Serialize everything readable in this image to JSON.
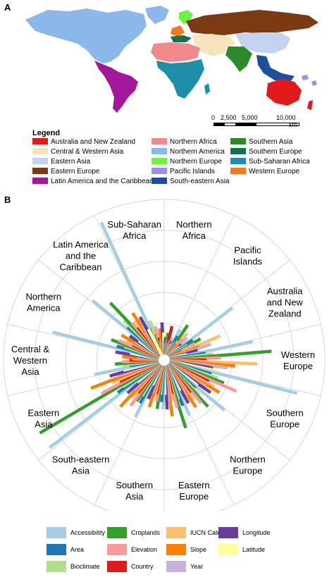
{
  "panel_a_label": "A",
  "panel_b_label": "B",
  "map": {
    "scale_labels": [
      "0",
      "2,500",
      "5,000",
      "10,000"
    ],
    "scale_unit": "km",
    "legend_title": "Legend",
    "legend": [
      {
        "label": "Australia and New Zealand",
        "color": "#e31a1c"
      },
      {
        "label": "Central & Western Asia",
        "color": "#f7e3bd"
      },
      {
        "label": "Eastern Asia",
        "color": "#c6d3f0"
      },
      {
        "label": "Eastern Europe",
        "color": "#7b3a12"
      },
      {
        "label": "Latin America and the Caribbean",
        "color": "#a3189a"
      },
      {
        "label": "Northern Africa",
        "color": "#f08a8a"
      },
      {
        "label": "Northern America",
        "color": "#8ab8ea"
      },
      {
        "label": "Northern Europe",
        "color": "#6ff23e"
      },
      {
        "label": "Pacific Islands",
        "color": "#9a8fe0"
      },
      {
        "label": "South-eastern Asia",
        "color": "#1d4f9e"
      },
      {
        "label": "Southern Asia",
        "color": "#2c8a2c"
      },
      {
        "label": "Southern Europe",
        "color": "#167049"
      },
      {
        "label": "Sub-Saharan Africa",
        "color": "#1f8ea8"
      },
      {
        "label": "Western Europe",
        "color": "#f2791c"
      }
    ]
  },
  "chart_data": {
    "type": "bar",
    "regions": [
      {
        "name": [
          "Sub-Saharan",
          "Africa"
        ]
      },
      {
        "name": [
          "Northern",
          "Africa"
        ]
      },
      {
        "name": [
          "Pacific",
          "Islands"
        ]
      },
      {
        "name": [
          "Australia",
          "and New",
          "Zealand"
        ]
      },
      {
        "name": [
          "Western",
          "Europe"
        ]
      },
      {
        "name": [
          "Southern",
          "Europe"
        ]
      },
      {
        "name": [
          "Northern",
          "Europe"
        ]
      },
      {
        "name": [
          "Eastern",
          "Europe"
        ]
      },
      {
        "name": [
          "Southern",
          "Asia"
        ]
      },
      {
        "name": [
          "South-eastern",
          "Asia"
        ]
      },
      {
        "name": [
          "Eastern",
          "Asia"
        ]
      },
      {
        "name": [
          "Central &",
          "Western",
          "Asia"
        ]
      },
      {
        "name": [
          "Northern",
          "America"
        ]
      },
      {
        "name": [
          "Latin America",
          "and the",
          "Caribbean"
        ]
      }
    ],
    "variables": [
      {
        "name": "Accessibility",
        "color": "#a6cee3"
      },
      {
        "name": "Area",
        "color": "#1f78b4"
      },
      {
        "name": "Bioclimate",
        "color": "#b2df8a"
      },
      {
        "name": "Croplands",
        "color": "#33a02c"
      },
      {
        "name": "Elevation",
        "color": "#fb9a99"
      },
      {
        "name": "Country",
        "color": "#e31a1c"
      },
      {
        "name": "IUCN Category",
        "color": "#fdbf6f"
      },
      {
        "name": "Slope",
        "color": "#ff7f00"
      },
      {
        "name": "Year",
        "color": "#cab2d6"
      },
      {
        "name": "Longitude",
        "color": "#6a3d9a"
      },
      {
        "name": "Latitude",
        "color": "#ffff99"
      }
    ],
    "values": [
      [
        1.0,
        0.2,
        0.25,
        0.15,
        0.2,
        0.12,
        0.1,
        0.18,
        0.1,
        0.22,
        0.15
      ],
      [
        0.1,
        0.12,
        0.08,
        0.15,
        0.1,
        0.2,
        0.08,
        0.1,
        0.12,
        0.1,
        0.08
      ],
      [
        0.2,
        0.15,
        0.1,
        0.25,
        0.12,
        0.1,
        0.2,
        0.15,
        0.18,
        0.12,
        0.1
      ],
      [
        0.55,
        0.2,
        0.15,
        0.25,
        0.2,
        0.1,
        0.38,
        0.22,
        0.3,
        0.2,
        0.12
      ],
      [
        0.58,
        0.25,
        0.3,
        0.7,
        0.35,
        0.25,
        0.6,
        0.45,
        0.4,
        0.3,
        0.35
      ],
      [
        0.9,
        0.3,
        0.35,
        0.4,
        0.5,
        0.3,
        0.35,
        0.4,
        0.3,
        0.35,
        0.25
      ],
      [
        0.5,
        0.25,
        0.3,
        0.4,
        0.35,
        0.25,
        0.3,
        0.35,
        0.25,
        0.3,
        0.2
      ],
      [
        0.38,
        0.3,
        0.25,
        0.45,
        0.3,
        0.2,
        0.25,
        0.35,
        0.25,
        0.3,
        0.2
      ],
      [
        0.3,
        0.25,
        0.2,
        0.3,
        0.25,
        0.2,
        0.22,
        0.3,
        0.2,
        0.25,
        0.15
      ],
      [
        0.4,
        0.3,
        0.25,
        0.3,
        0.35,
        0.25,
        0.3,
        0.4,
        0.25,
        0.3,
        0.2
      ],
      [
        0.95,
        0.35,
        0.3,
        0.95,
        0.45,
        0.3,
        0.35,
        0.5,
        0.3,
        0.35,
        0.25
      ],
      [
        0.45,
        0.2,
        0.25,
        0.3,
        0.25,
        0.2,
        0.18,
        0.25,
        0.15,
        0.3,
        0.2
      ],
      [
        0.75,
        0.3,
        0.25,
        0.35,
        0.3,
        0.2,
        0.25,
        0.3,
        0.2,
        0.25,
        0.18
      ],
      [
        0.6,
        0.3,
        0.35,
        0.5,
        0.3,
        0.25,
        0.3,
        0.35,
        0.25,
        0.3,
        0.2
      ]
    ]
  }
}
